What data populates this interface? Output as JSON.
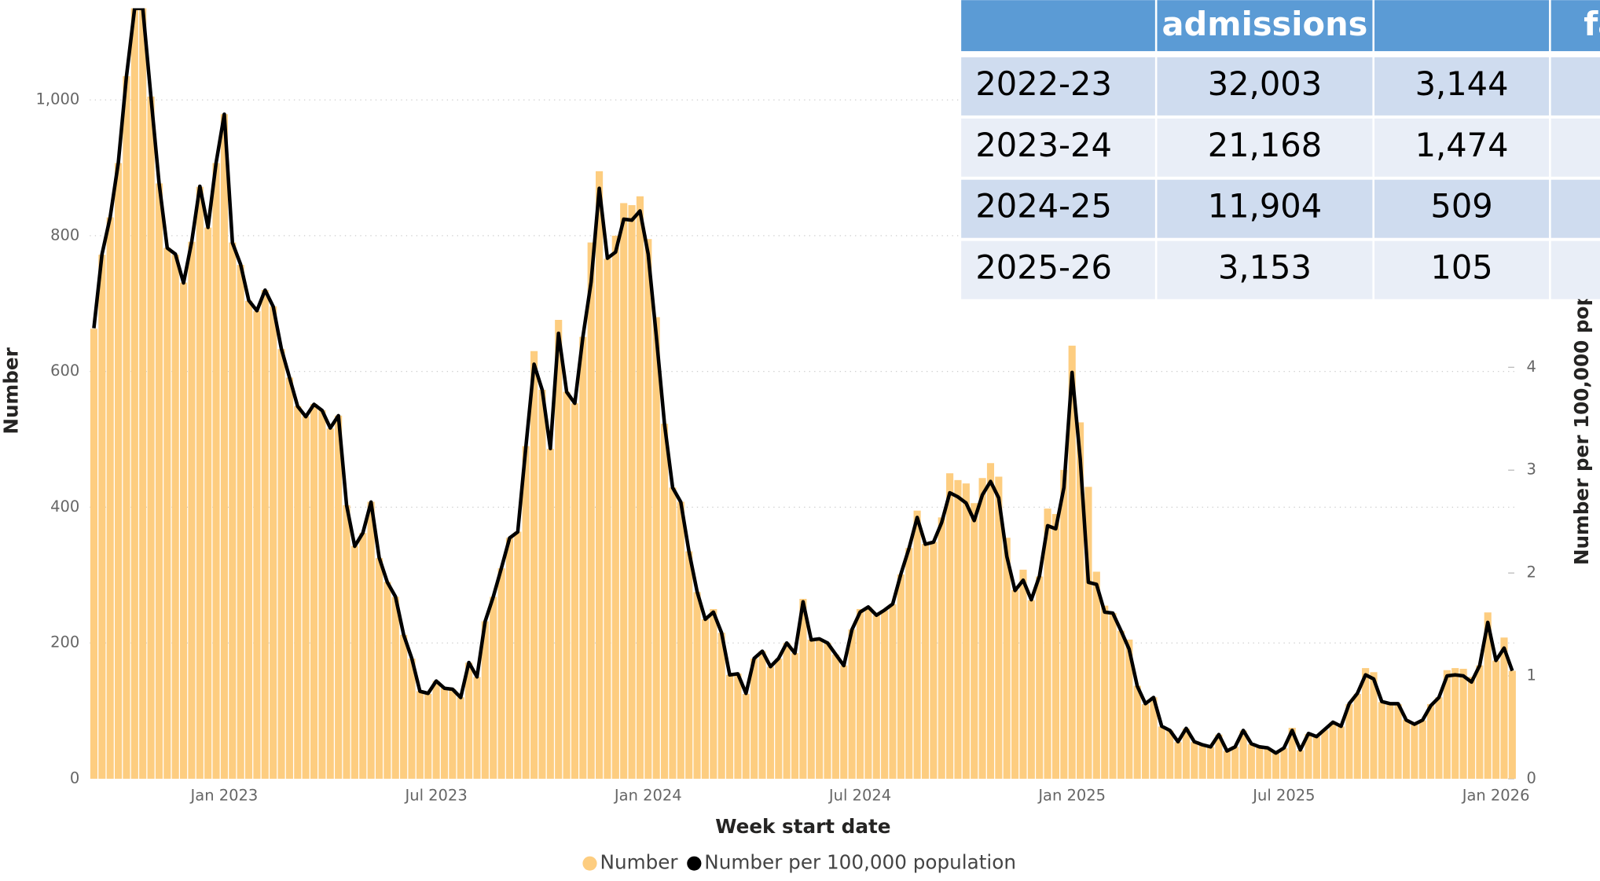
{
  "chart_data": {
    "type": "combo",
    "x_label": "Week start date",
    "y_label": "Number",
    "y2_label": "Number per 100,000 pop",
    "legend": "bottom",
    "grid": true,
    "categories": [
      null,
      null,
      null,
      null,
      null,
      null,
      null,
      null,
      null,
      null,
      null,
      null,
      null,
      null,
      null,
      null,
      "Jan 2023",
      null,
      null,
      null,
      null,
      null,
      null,
      null,
      null,
      null,
      null,
      null,
      null,
      null,
      null,
      null,
      null,
      null,
      null,
      null,
      null,
      null,
      null,
      null,
      null,
      null,
      "Jul 2023",
      null,
      null,
      null,
      null,
      null,
      null,
      null,
      null,
      null,
      null,
      null,
      null,
      null,
      null,
      null,
      null,
      null,
      null,
      null,
      null,
      null,
      null,
      null,
      null,
      null,
      "Jan 2024",
      null,
      null,
      null,
      null,
      null,
      null,
      null,
      null,
      null,
      null,
      null,
      null,
      null,
      null,
      null,
      null,
      null,
      null,
      null,
      null,
      null,
      null,
      null,
      null,
      null,
      "Jul 2024",
      null,
      null,
      null,
      null,
      null,
      null,
      null,
      null,
      null,
      null,
      null,
      null,
      null,
      null,
      null,
      null,
      null,
      null,
      null,
      null,
      null,
      null,
      null,
      null,
      null,
      "Jan 2025",
      null,
      null,
      null,
      null,
      null,
      null,
      null,
      null,
      null,
      null,
      null,
      null,
      null,
      null,
      null,
      null,
      null,
      null,
      null,
      null,
      null,
      null,
      null,
      null,
      null,
      "Jul 2025",
      null,
      null,
      null,
      null,
      null,
      null,
      null,
      null,
      null,
      null,
      null,
      null,
      null,
      null,
      null,
      null,
      null,
      null,
      null,
      null,
      null,
      null,
      null,
      null,
      null,
      "Jan 2026",
      null,
      null
    ],
    "ylim": [
      0,
      1135
    ],
    "yticks": [
      0,
      200,
      400,
      600,
      800,
      {
        "value": 1000,
        "label": "1,000"
      }
    ],
    "y2lim": [
      0,
      7.49
    ],
    "y2ticks": [
      0,
      1,
      2,
      3,
      4
    ],
    "series": [
      {
        "name": "Number",
        "type": "bar",
        "color": "#fdcd80",
        "values": [
          663,
          772,
          827,
          907,
          1035,
          1135,
          1135,
          1005,
          877,
          782,
          772,
          731,
          791,
          872,
          812,
          907,
          979,
          790,
          757,
          704,
          689,
          720,
          696,
          633,
          591,
          549,
          534,
          552,
          543,
          516,
          535,
          403,
          343,
          362,
          408,
          325,
          290,
          268,
          212,
          177,
          129,
          125,
          144,
          134,
          132,
          120,
          171,
          150,
          232,
          268,
          310,
          355,
          364,
          490,
          630,
          573,
          486,
          676,
          570,
          553,
          651,
          790,
          895,
          766,
          800,
          848,
          845,
          858,
          795,
          680,
          523,
          429,
          408,
          335,
          275,
          235,
          250,
          215,
          153,
          155,
          125,
          177,
          188,
          165,
          177,
          200,
          185,
          265,
          205,
          206,
          200,
          183,
          167,
          220,
          250,
          253,
          241,
          248,
          257,
          301,
          340,
          395,
          346,
          349,
          385,
          450,
          440,
          435,
          406,
          443,
          465,
          445,
          355,
          278,
          308,
          263,
          298,
          398,
          390,
          455,
          638,
          525,
          430,
          305,
          255,
          244,
          218,
          205,
          137,
          110,
          120,
          77,
          71,
          54,
          74,
          54,
          50,
          47,
          65,
          41,
          47,
          71,
          51,
          47,
          45,
          38,
          45,
          75,
          42,
          66,
          62,
          72,
          83,
          77,
          110,
          125,
          163,
          157,
          113,
          110,
          110,
          87,
          81,
          86,
          110,
          120,
          160,
          163,
          162,
          150,
          167,
          245,
          174,
          208,
          159
        ]
      },
      {
        "name": "Number per 100,000 population",
        "type": "line",
        "axis": "y2",
        "color": "#000000",
        "values": [
          4.38,
          5.1,
          5.46,
          5.99,
          6.83,
          7.49,
          7.49,
          6.63,
          5.79,
          5.16,
          5.1,
          4.82,
          5.22,
          5.76,
          5.36,
          5.99,
          6.46,
          5.21,
          5.0,
          4.65,
          4.55,
          4.75,
          4.59,
          4.18,
          3.9,
          3.62,
          3.52,
          3.64,
          3.58,
          3.41,
          3.53,
          2.66,
          2.26,
          2.39,
          2.69,
          2.15,
          1.91,
          1.77,
          1.4,
          1.17,
          0.85,
          0.83,
          0.95,
          0.88,
          0.87,
          0.79,
          1.13,
          0.99,
          1.53,
          1.77,
          2.05,
          2.34,
          2.4,
          3.23,
          4.03,
          3.78,
          3.21,
          4.33,
          3.76,
          3.65,
          4.3,
          4.83,
          5.74,
          5.06,
          5.12,
          5.44,
          5.43,
          5.52,
          5.1,
          4.3,
          3.45,
          2.83,
          2.69,
          2.21,
          1.82,
          1.55,
          1.62,
          1.42,
          1.01,
          1.02,
          0.83,
          1.17,
          1.24,
          1.09,
          1.17,
          1.32,
          1.22,
          1.72,
          1.35,
          1.36,
          1.32,
          1.21,
          1.1,
          1.45,
          1.62,
          1.67,
          1.59,
          1.64,
          1.7,
          1.99,
          2.24,
          2.54,
          2.28,
          2.3,
          2.49,
          2.78,
          2.74,
          2.68,
          2.51,
          2.76,
          2.89,
          2.73,
          2.16,
          1.83,
          1.93,
          1.74,
          1.97,
          2.46,
          2.43,
          2.83,
          3.95,
          3.11,
          1.91,
          1.89,
          1.62,
          1.61,
          1.44,
          1.26,
          0.9,
          0.73,
          0.79,
          0.51,
          0.47,
          0.36,
          0.49,
          0.36,
          0.33,
          0.31,
          0.43,
          0.27,
          0.31,
          0.47,
          0.34,
          0.31,
          0.3,
          0.25,
          0.3,
          0.47,
          0.28,
          0.44,
          0.41,
          0.48,
          0.55,
          0.51,
          0.73,
          0.83,
          1.01,
          0.97,
          0.75,
          0.73,
          0.73,
          0.57,
          0.53,
          0.57,
          0.71,
          0.79,
          1.0,
          1.01,
          1.0,
          0.94,
          1.1,
          1.52,
          1.15,
          1.27,
          1.05
        ]
      }
    ]
  },
  "table": {
    "header": [
      "admissions",
      "fa"
    ],
    "rows": [
      [
        "2022-23",
        "32,003",
        "3,144"
      ],
      [
        "2023-24",
        "21,168",
        "1,474"
      ],
      [
        "2024-25",
        "11,904",
        "509"
      ],
      [
        "2025-26",
        "3,153",
        "105"
      ]
    ]
  }
}
